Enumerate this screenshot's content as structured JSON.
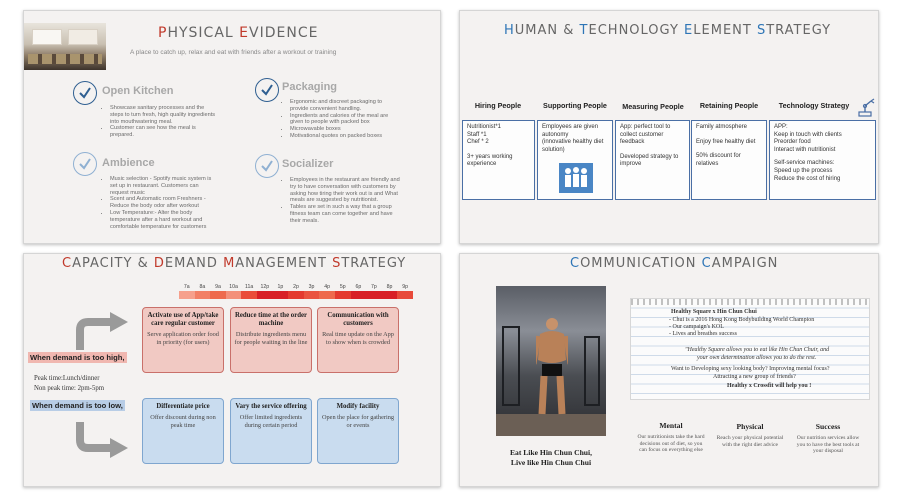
{
  "physical": {
    "title_first": "P",
    "title_rest": "HYSICAL ",
    "title2_first": "E",
    "title2_rest": "VIDENCE",
    "subtitle": "A place to catch up, relax and eat with friends after a workout or training",
    "sections": [
      {
        "heading": "Open Kitchen",
        "items": [
          "Showcase sanitary processes and the steps to turn fresh, high quality ingredients into mouthwatering meal.",
          "Customer can see how the meal is prepared."
        ]
      },
      {
        "heading": "Packaging",
        "items": [
          "Ergonomic and discreet packaging to provide convenient handling.",
          "Ingredients and calories of the meal are given to people with packed box",
          "Microwavable boxes",
          "Motivational quotes on packed boxes"
        ]
      },
      {
        "heading": "Ambience",
        "items": [
          "Music selection - Spotify music system is set up in restaurant. Customers can request music",
          "Scent and Automatic room Freshners - Reduce the body odor after workout",
          "Low Temperature:- Alter the body temperature after a hard workout and comfortable temperature for customers"
        ]
      },
      {
        "heading": "Socializer",
        "items": [
          "Employees in the restaurant are friendly and try to have conversation with customers by asking how tiring their work out is and What meals are suggested by nutritionist.",
          "Tables are set in such a way that a group fitness team can come together and have their meals."
        ]
      }
    ]
  },
  "human": {
    "title": [
      {
        "first": "H",
        "rest": "UMAN & "
      },
      {
        "first": "T",
        "rest": "ECHNOLOGY "
      },
      {
        "first": "E",
        "rest": "LEMENT "
      },
      {
        "first": "S",
        "rest": "TRATEGY"
      }
    ],
    "columns": [
      {
        "heading": "Hiring People",
        "lines": [
          "Nutritionist*1",
          "Staff  *1",
          "Chef * 2",
          "",
          "3+ years working experience"
        ]
      },
      {
        "heading": "Supporting People",
        "lines": [
          "Employees are given autonomy",
          "(innovative healthy diet solution)"
        ]
      },
      {
        "heading": "Measuring People",
        "lines": [
          "App:  perfect tool to collect customer feedback",
          "",
          "Developed strategy to improve"
        ]
      },
      {
        "heading": "Retaining People",
        "lines": [
          "Family atmosphere",
          "",
          "Enjoy free healthy diet",
          "",
          "50% discount for relatives"
        ]
      },
      {
        "heading": "Technology Strategy",
        "lines": [
          "APP:",
          "Keep in touch with clients",
          "Preorder food",
          "Interact with nutritionist",
          "",
          "Self-service machines:",
          "Speed up the process",
          "Reduce the cost of hiring"
        ]
      }
    ],
    "accent": "#2e75b6"
  },
  "capacity": {
    "title": [
      {
        "first": "C",
        "rest": "APACITY & "
      },
      {
        "first": "D",
        "rest": "EMAND "
      },
      {
        "first": "M",
        "rest": "ANAGEMENT "
      },
      {
        "first": "S",
        "rest": "TRATEGY"
      }
    ],
    "hours": [
      "7a",
      "8a",
      "9a",
      "10a",
      "11a",
      "12p",
      "1p",
      "2p",
      "3p",
      "4p",
      "5p",
      "6p",
      "7p",
      "8p",
      "9p"
    ],
    "hour_colors": [
      "#f6a08c",
      "#f28066",
      "#ee6a4d",
      "#f3907a",
      "#ea4d3a",
      "#d81f26",
      "#d81f26",
      "#e43a2f",
      "#ea5440",
      "#ee6a4d",
      "#e43a2f",
      "#d81f26",
      "#d81f26",
      "#d81f26",
      "#e84a3a"
    ],
    "high_label": "When demand is too high,",
    "low_label": "When demand is too low,",
    "peak_time": "Peak time:Lunch/dinner",
    "nonpeak_time": "Non peak time: 2pm-5pm",
    "high_boxes": [
      {
        "heading": "Activate use of App/take care regular customer",
        "body": "Serve application order food in priority (for users)"
      },
      {
        "heading": "Reduce time at the order machine",
        "body": "Distribute ingredients menu for people waiting in the line"
      },
      {
        "heading": "Communication with customers",
        "body": "Real time update on the App to show when is crowded"
      }
    ],
    "low_boxes": [
      {
        "heading": "Differentiate price",
        "body": "Offer discount during non peak time"
      },
      {
        "heading": "Vary the service offering",
        "body": "Offer limited ingredients during certain period"
      },
      {
        "heading": "Modify facility",
        "body": "Open the place for gathering or events"
      }
    ]
  },
  "communication": {
    "title": [
      {
        "first": "C",
        "rest": "OMMUNICATION "
      },
      {
        "first": "C",
        "rest": "AMPAIGN"
      }
    ],
    "caption_1": "Eat Like Hin Chun Chui,",
    "caption_2": "Live like Hin Chun Chui",
    "note_heading": "Healthy Square x Hin Chun Chui",
    "note_lines": [
      "- Chui is a 2016 Hong Kong Bodybuilding  World Champion",
      "- Our campaign's KOL",
      "- Lives and breathes  success"
    ],
    "quote_1": "\"Healthy Square allows you to eat like Hin Chun Chuir, and",
    "quote_2": "your own determination allows you to do the rest.",
    "question_1": "Want to Developing  sexy looking body? Improving mental focus?",
    "question_2": "Attracting  a new group of friends?",
    "answer": "Healthy x Crossfit will help you !",
    "benefits": [
      {
        "heading": "Mental",
        "body": "Our nutritionists take the hard decisions out of diet, so you can focus on everything else"
      },
      {
        "heading": "Physical",
        "body": "Reach your physical potential with the right diet advice"
      },
      {
        "heading": "Success",
        "body": "Our nutrition services allow you to have the best tools at your disposal"
      }
    ]
  }
}
